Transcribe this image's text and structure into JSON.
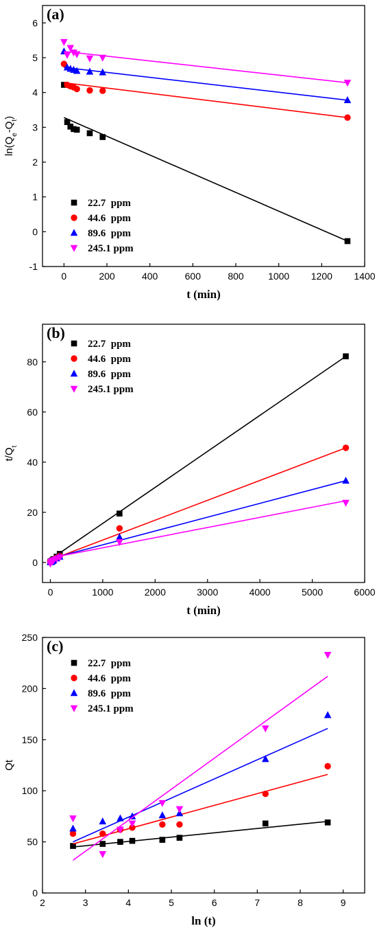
{
  "colors": {
    "black": "#000000",
    "red": "#ff0000",
    "blue": "#0000ff",
    "magenta": "#ff00ff"
  },
  "chart_data": [
    {
      "panel_label": "(a)",
      "type": "scatter",
      "xlabel": "t (min)",
      "ylabel": {
        "main": "ln(Q",
        "sub1": "e",
        "mid": "-Q",
        "sub2": "t",
        "end": ")"
      },
      "xlim": [
        -100,
        1400
      ],
      "ylim": [
        -1,
        6.5
      ],
      "xticks": [
        0,
        200,
        400,
        600,
        800,
        1000,
        1200,
        1400
      ],
      "yticks": [
        -1,
        0,
        1,
        2,
        3,
        4,
        5,
        6
      ],
      "legend_position": "bottom-left",
      "series": [
        {
          "name": "22.7  ppm",
          "color": "#000000",
          "marker": "square",
          "x": [
            0,
            15,
            30,
            45,
            60,
            120,
            180,
            1320
          ],
          "y": [
            4.22,
            3.15,
            3.02,
            2.95,
            2.93,
            2.83,
            2.72,
            -0.27
          ],
          "fit": [
            [
              0,
              3.28
            ],
            [
              1320,
              -0.27
            ]
          ]
        },
        {
          "name": "44.6  ppm",
          "color": "#ff0000",
          "marker": "circle",
          "x": [
            0,
            15,
            30,
            45,
            60,
            120,
            180,
            1320
          ],
          "y": [
            4.82,
            4.22,
            4.18,
            4.15,
            4.1,
            4.06,
            4.05,
            3.28
          ],
          "fit": [
            [
              0,
              4.28
            ],
            [
              1320,
              3.28
            ]
          ]
        },
        {
          "name": "89.6  ppm",
          "color": "#0000ff",
          "marker": "triangle-up",
          "x": [
            0,
            15,
            30,
            45,
            60,
            120,
            180,
            1320
          ],
          "y": [
            5.18,
            4.72,
            4.68,
            4.65,
            4.62,
            4.6,
            4.58,
            3.78
          ],
          "fit": [
            [
              0,
              4.72
            ],
            [
              1320,
              3.78
            ]
          ]
        },
        {
          "name": "245.1 ppm",
          "color": "#ff00ff",
          "marker": "triangle-down",
          "x": [
            0,
            15,
            30,
            45,
            60,
            120,
            180,
            1320
          ],
          "y": [
            5.45,
            5.08,
            5.28,
            5.15,
            5.1,
            4.98,
            5.0,
            4.28
          ],
          "fit": [
            [
              0,
              5.18
            ],
            [
              1320,
              4.28
            ]
          ]
        }
      ]
    },
    {
      "panel_label": "(b)",
      "type": "scatter",
      "xlabel": "t (min)",
      "ylabel": {
        "main": "t/Q",
        "sub1": "t"
      },
      "xlim": [
        -150,
        6000
      ],
      "ylim": [
        -8,
        95
      ],
      "xticks": [
        0,
        1000,
        2000,
        3000,
        4000,
        5000,
        6000
      ],
      "yticks": [
        0,
        20,
        40,
        60,
        80
      ],
      "legend_position": "top-left",
      "series": [
        {
          "name": "22.7  ppm",
          "color": "#000000",
          "marker": "square",
          "x": [
            0,
            15,
            30,
            45,
            60,
            120,
            180,
            1320,
            5640
          ],
          "y": [
            0.3,
            0.5,
            0.7,
            1.0,
            1.3,
            2.3,
            3.4,
            19.5,
            82.2
          ],
          "fit": [
            [
              0,
              1.2
            ],
            [
              5640,
              82.2
            ]
          ]
        },
        {
          "name": "44.6  ppm",
          "color": "#ff0000",
          "marker": "circle",
          "x": [
            0,
            15,
            30,
            45,
            60,
            120,
            180,
            1320,
            5640
          ],
          "y": [
            0.2,
            0.3,
            0.5,
            0.7,
            0.9,
            1.8,
            2.6,
            13.6,
            45.7
          ],
          "fit": [
            [
              0,
              1.0
            ],
            [
              5640,
              45.7
            ]
          ]
        },
        {
          "name": "89.6  ppm",
          "color": "#0000ff",
          "marker": "triangle-up",
          "x": [
            0,
            15,
            30,
            45,
            60,
            120,
            180,
            1320,
            5640
          ],
          "y": [
            0.1,
            0.2,
            0.4,
            0.6,
            0.8,
            1.6,
            2.3,
            10.1,
            32.6
          ],
          "fit": [
            [
              0,
              1.5
            ],
            [
              5640,
              32.6
            ]
          ]
        },
        {
          "name": "245.1 ppm",
          "color": "#ff00ff",
          "marker": "triangle-down",
          "x": [
            0,
            15,
            30,
            45,
            60,
            120,
            180,
            1320,
            5640
          ],
          "y": [
            -0.5,
            0.2,
            0.4,
            0.6,
            0.8,
            1.4,
            2.0,
            8.1,
            23.8
          ],
          "fit": [
            [
              0,
              1.8
            ],
            [
              5640,
              24.6
            ]
          ]
        }
      ]
    },
    {
      "panel_label": "(c)",
      "type": "scatter",
      "xlabel": "ln (t)",
      "ylabel": {
        "main": "Qt"
      },
      "xlim": [
        2,
        9.5
      ],
      "ylim": [
        0,
        250
      ],
      "xticks": [
        2,
        3,
        4,
        5,
        6,
        7,
        8,
        9
      ],
      "yticks": [
        0,
        50,
        100,
        150,
        200,
        250
      ],
      "legend_position": "top-left",
      "series": [
        {
          "name": "22.7  ppm",
          "color": "#000000",
          "marker": "square",
          "x": [
            2.71,
            3.4,
            3.81,
            4.09,
            4.79,
            5.19,
            7.19,
            8.64
          ],
          "y": [
            46,
            48,
            50,
            51,
            52,
            54,
            68,
            69
          ],
          "fit": [
            [
              2.71,
              45
            ],
            [
              8.64,
              70
            ]
          ]
        },
        {
          "name": "44.6  ppm",
          "color": "#ff0000",
          "marker": "circle",
          "x": [
            2.71,
            3.4,
            3.81,
            4.09,
            4.79,
            5.19,
            7.19,
            8.64
          ],
          "y": [
            58,
            58,
            62,
            64,
            67,
            67,
            97,
            124
          ],
          "fit": [
            [
              2.71,
              48
            ],
            [
              8.64,
              116
            ]
          ]
        },
        {
          "name": "89.6  ppm",
          "color": "#0000ff",
          "marker": "triangle-up",
          "x": [
            2.71,
            3.4,
            3.81,
            4.09,
            4.79,
            5.19,
            7.19,
            8.64
          ],
          "y": [
            63,
            70,
            73,
            75,
            76,
            78,
            131,
            174
          ],
          "fit": [
            [
              2.71,
              50
            ],
            [
              8.64,
              161
            ]
          ]
        },
        {
          "name": "245.1 ppm",
          "color": "#ff00ff",
          "marker": "triangle-down",
          "x": [
            2.71,
            3.4,
            3.81,
            4.09,
            4.79,
            5.19,
            7.19,
            8.64
          ],
          "y": [
            73,
            38,
            62,
            68,
            88,
            82,
            161,
            233
          ],
          "fit": [
            [
              2.71,
              32
            ],
            [
              8.64,
              212
            ]
          ]
        }
      ]
    }
  ]
}
